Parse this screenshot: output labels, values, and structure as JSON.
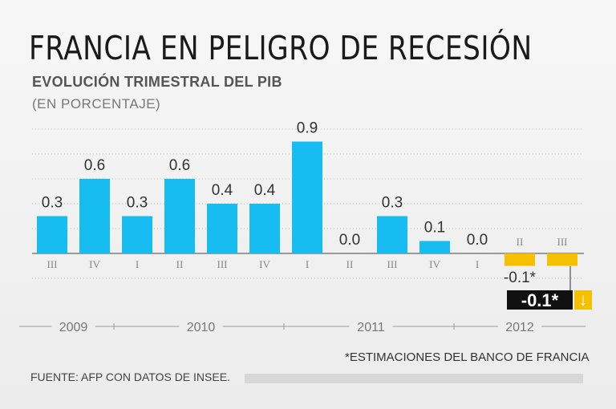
{
  "header": {
    "title": "FRANCIA EN PELIGRO DE RECESIÓN",
    "subtitle": "EVOLUCIÓN TRIMESTRAL DEL PIB",
    "unit": "(EN PORCENTAJE)"
  },
  "footer": {
    "note": "*ESTIMACIONES DEL BANCO DE FRANCIA",
    "source": "FUENTE: AFP CON DATOS DE INSEE."
  },
  "colors": {
    "bar": "#17bdf1",
    "estimate": "#f5c000",
    "callout_bg": "#111111",
    "arrow_bg": "#f5c000"
  },
  "chart_data": {
    "type": "bar",
    "title": "FRANCIA EN PELIGRO DE RECESIÓN",
    "ylabel": "EN PORCENTAJE",
    "ylim": [
      -0.2,
      1.0
    ],
    "categories": [
      "III",
      "IV",
      "I",
      "II",
      "III",
      "IV",
      "I",
      "II",
      "III",
      "IV",
      "I",
      "II",
      "III"
    ],
    "years": [
      {
        "label": "2009",
        "from": 0,
        "to": 1
      },
      {
        "label": "2010",
        "from": 2,
        "to": 5
      },
      {
        "label": "2011",
        "from": 6,
        "to": 9
      },
      {
        "label": "2012",
        "from": 10,
        "to": 12
      }
    ],
    "values": [
      0.3,
      0.6,
      0.3,
      0.6,
      0.4,
      0.4,
      0.9,
      0.0,
      0.3,
      0.1,
      0.0,
      -0.1,
      -0.1
    ],
    "value_labels": [
      "0.3",
      "0.6",
      "0.3",
      "0.6",
      "0.4",
      "0.4",
      "0.9",
      "0.0",
      "0.3",
      "0.1",
      "0.0",
      "",
      ""
    ],
    "estimated": [
      false,
      false,
      false,
      false,
      false,
      false,
      false,
      false,
      false,
      false,
      false,
      true,
      true
    ],
    "annotations": [
      {
        "text": "-0.1*",
        "category_index": 11
      },
      {
        "text": "-0.1*",
        "category_index": 12,
        "style": "callout",
        "arrow": "↓"
      }
    ]
  }
}
